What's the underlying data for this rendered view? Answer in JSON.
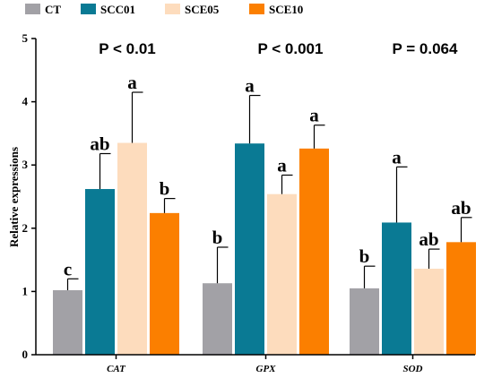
{
  "chart_data": {
    "type": "bar",
    "categories": [
      "CAT",
      "GPX",
      "SOD"
    ],
    "ylabel": "Relative expressions",
    "ylim": [
      0,
      5
    ],
    "yticks": [
      0,
      1,
      2,
      3,
      4,
      5
    ],
    "legend_position": "top",
    "series": [
      {
        "name": "CT",
        "color": "#a2a1a6",
        "values": [
          1.02,
          1.13,
          1.05
        ],
        "errors": [
          0.18,
          0.57,
          0.35
        ],
        "labels": [
          "c",
          "b",
          "b"
        ]
      },
      {
        "name": "SCC01",
        "color": "#0a7a94",
        "values": [
          2.62,
          3.34,
          2.09
        ],
        "errors": [
          0.56,
          0.76,
          0.88
        ],
        "labels": [
          "ab",
          "a",
          "a"
        ]
      },
      {
        "name": "SCE05",
        "color": "#fddcbd",
        "values": [
          3.35,
          2.54,
          1.36
        ],
        "errors": [
          0.8,
          0.3,
          0.31
        ],
        "labels": [
          "a",
          "a",
          "ab"
        ]
      },
      {
        "name": "SCE10",
        "color": "#fb7f00",
        "values": [
          2.24,
          3.26,
          1.78
        ],
        "errors": [
          0.23,
          0.37,
          0.39
        ],
        "labels": [
          "b",
          "a",
          "ab"
        ]
      }
    ],
    "annotations": [
      "P < 0.01",
      "P < 0.001",
      "P = 0.064"
    ]
  }
}
